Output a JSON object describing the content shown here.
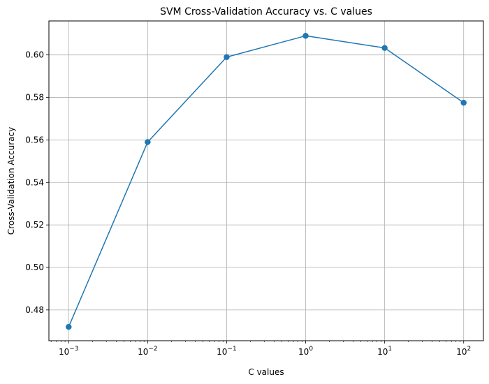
{
  "chart_data": {
    "type": "line",
    "title": "SVM Cross-Validation Accuracy vs. C values",
    "xlabel": "C values",
    "ylabel": "Cross-Validation Accuracy",
    "x_scale": "log",
    "grid": true,
    "legend": "none",
    "x": [
      0.001,
      0.01,
      0.1,
      1,
      10,
      100
    ],
    "xticks": [
      {
        "value": 0.001,
        "base": "10",
        "exp": "−3"
      },
      {
        "value": 0.01,
        "base": "10",
        "exp": "−2"
      },
      {
        "value": 0.1,
        "base": "10",
        "exp": "−1"
      },
      {
        "value": 1,
        "base": "10",
        "exp": "0"
      },
      {
        "value": 10,
        "base": "10",
        "exp": "1"
      },
      {
        "value": 100,
        "base": "10",
        "exp": "2"
      }
    ],
    "yticks": [
      0.48,
      0.5,
      0.52,
      0.54,
      0.56,
      0.58,
      0.6
    ],
    "ytick_labels": [
      "0.48",
      "0.50",
      "0.52",
      "0.54",
      "0.56",
      "0.58",
      "0.60"
    ],
    "ylim": [
      0.4655,
      0.616
    ],
    "series": [
      {
        "values": [
          0.472,
          0.559,
          0.599,
          0.609,
          0.6033,
          0.5775
        ],
        "color": "#1f77b4",
        "marker": "circle"
      }
    ]
  }
}
